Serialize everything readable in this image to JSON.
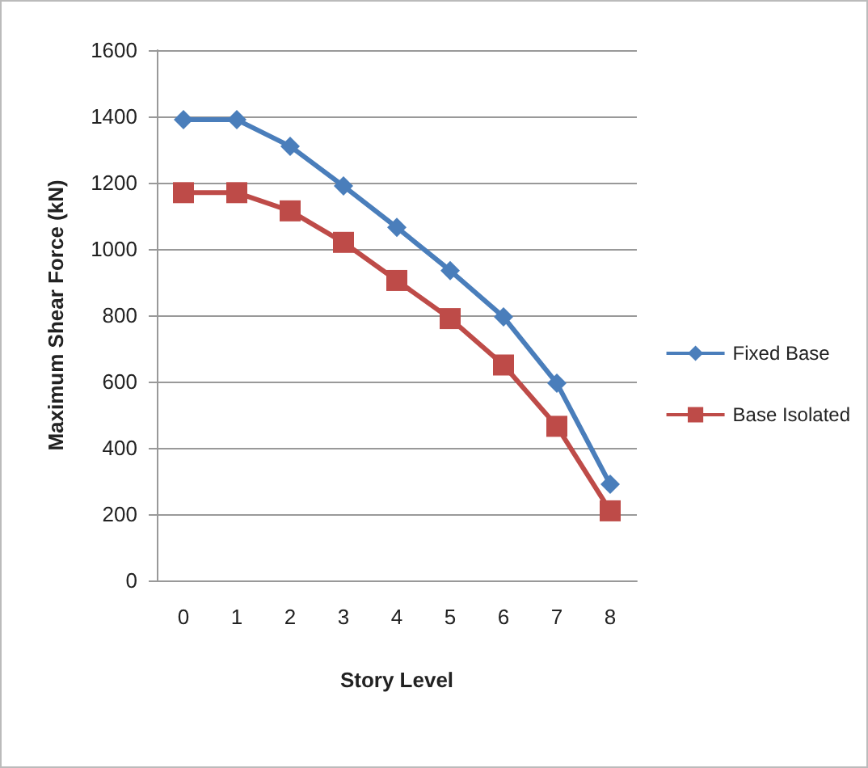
{
  "chart_data": {
    "type": "line",
    "xlabel": "Story Level",
    "ylabel": "Maximum Shear Force (kN)",
    "categories": [
      "0",
      "1",
      "2",
      "3",
      "4",
      "5",
      "6",
      "7",
      "8"
    ],
    "series": [
      {
        "name": "Fixed Base",
        "color": "#4a7ebb",
        "marker": "diamond",
        "values": [
          1390,
          1390,
          1310,
          1190,
          1065,
          935,
          795,
          595,
          290
        ]
      },
      {
        "name": "Base Isolated",
        "color": "#be4b48",
        "marker": "square",
        "values": [
          1170,
          1170,
          1115,
          1020,
          905,
          790,
          650,
          465,
          210
        ]
      }
    ],
    "ylim": [
      0,
      1600
    ],
    "yticks": [
      0,
      200,
      400,
      600,
      800,
      1000,
      1200,
      1400,
      1600
    ],
    "grid": "y",
    "legend": "right",
    "line_style": "solid"
  }
}
